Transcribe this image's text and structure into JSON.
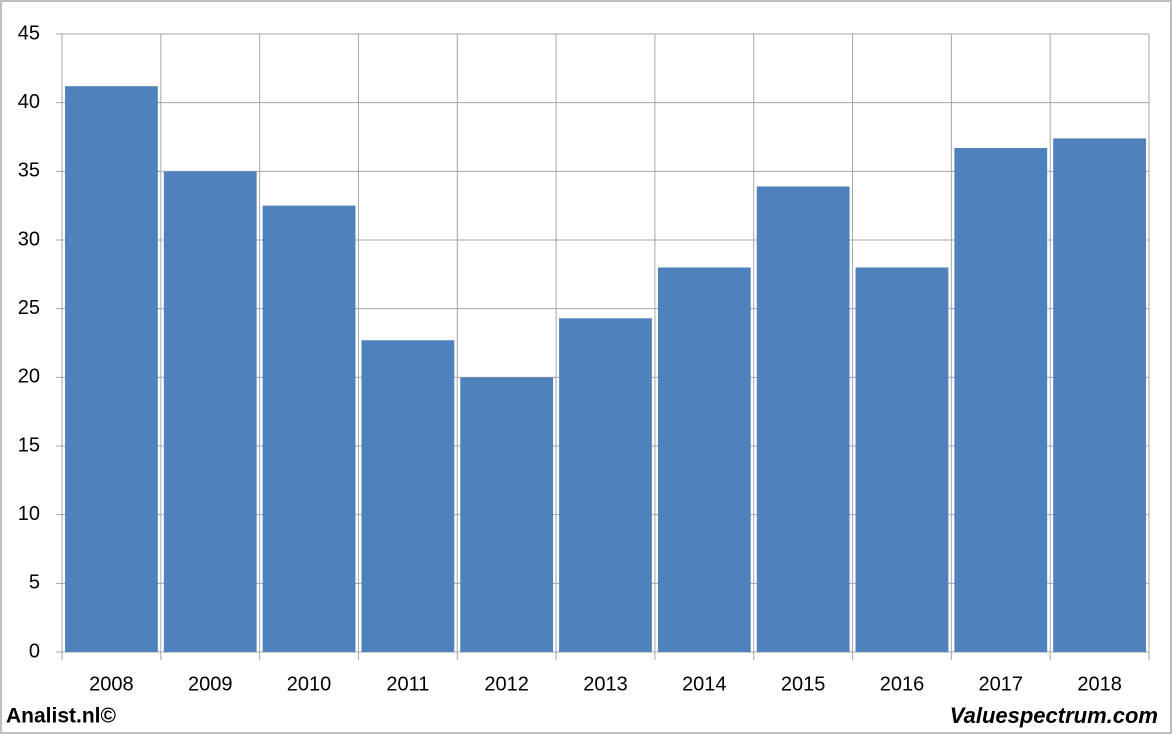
{
  "chart_data": {
    "type": "bar",
    "categories": [
      "2008",
      "2009",
      "2010",
      "2011",
      "2012",
      "2013",
      "2014",
      "2015",
      "2016",
      "2017",
      "2018"
    ],
    "values": [
      41.2,
      35.0,
      32.5,
      22.7,
      20.0,
      24.3,
      28.0,
      33.9,
      28.0,
      36.7,
      37.4
    ],
    "color": "#4f81bd",
    "ylim": [
      0,
      45
    ],
    "yticks": [
      0,
      5,
      10,
      15,
      20,
      25,
      30,
      35,
      40,
      45
    ],
    "grid": true,
    "credits": [
      "Analist.nl©",
      "Valuespectrum.com"
    ]
  }
}
